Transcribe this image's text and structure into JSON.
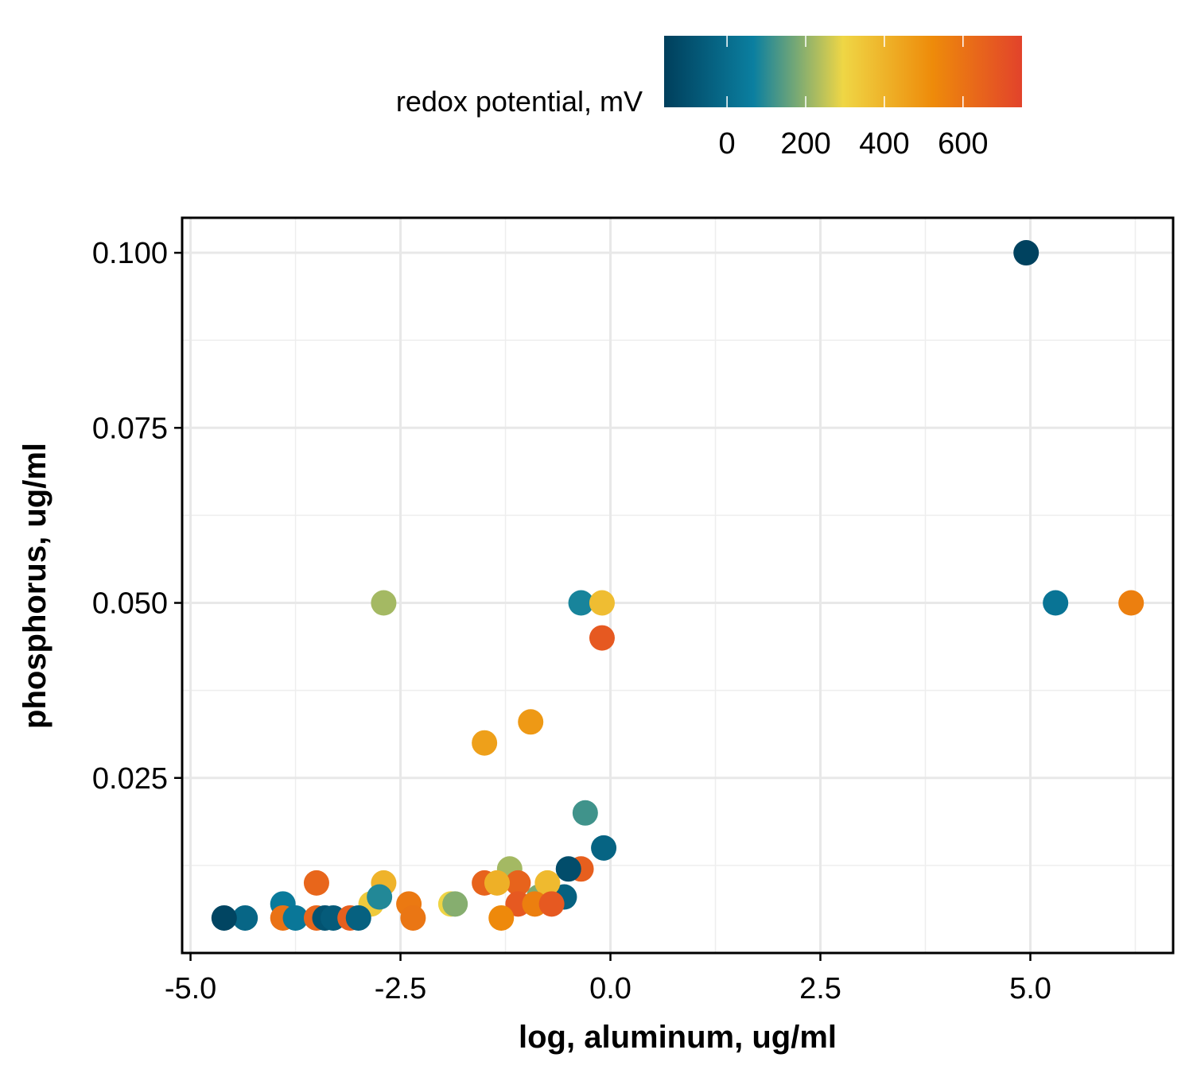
{
  "chart_data": {
    "type": "scatter",
    "title": "",
    "xlabel": "log, aluminum, ug/ml",
    "ylabel": "phosphorus, ug/ml",
    "xlim": [
      -5.1,
      6.7
    ],
    "ylim": [
      0.0,
      0.105
    ],
    "x_ticks": [
      -5.0,
      -2.5,
      0.0,
      2.5,
      5.0
    ],
    "x_tick_labels": [
      "-5.0",
      "-2.5",
      "0.0",
      "2.5",
      "5.0"
    ],
    "y_ticks": [
      0.025,
      0.05,
      0.075,
      0.1
    ],
    "y_tick_labels": [
      "0.025",
      "0.050",
      "0.075",
      "0.100"
    ],
    "grid": true,
    "color_legend": {
      "title": "redox potential, mV",
      "position": "top",
      "range": [
        -160,
        750
      ],
      "ticks": [
        0,
        200,
        400,
        600
      ],
      "tick_labels": [
        "0",
        "200",
        "400",
        "600"
      ],
      "colormap": [
        "#003f5c",
        "#0b7fa0",
        "#efd645",
        "#ee8b0a",
        "#e2432b"
      ]
    },
    "points": [
      {
        "x": 4.95,
        "y": 0.1,
        "c": -150
      },
      {
        "x": 5.3,
        "y": 0.05,
        "c": 30
      },
      {
        "x": 6.2,
        "y": 0.05,
        "c": 560
      },
      {
        "x": -2.7,
        "y": 0.05,
        "c": 220
      },
      {
        "x": -0.35,
        "y": 0.05,
        "c": 80
      },
      {
        "x": -0.1,
        "y": 0.05,
        "c": 370
      },
      {
        "x": -0.1,
        "y": 0.045,
        "c": 680
      },
      {
        "x": -0.95,
        "y": 0.033,
        "c": 480
      },
      {
        "x": -1.5,
        "y": 0.03,
        "c": 460
      },
      {
        "x": -0.3,
        "y": 0.02,
        "c": 120
      },
      {
        "x": -0.08,
        "y": 0.015,
        "c": -30
      },
      {
        "x": -0.35,
        "y": 0.012,
        "c": 660
      },
      {
        "x": -0.5,
        "y": 0.012,
        "c": -110
      },
      {
        "x": -1.2,
        "y": 0.012,
        "c": 220
      },
      {
        "x": -0.55,
        "y": 0.008,
        "c": -40
      },
      {
        "x": -0.85,
        "y": 0.008,
        "c": 180
      },
      {
        "x": -0.75,
        "y": 0.01,
        "c": 380
      },
      {
        "x": -1.1,
        "y": 0.01,
        "c": 650
      },
      {
        "x": -1.5,
        "y": 0.01,
        "c": 650
      },
      {
        "x": -1.35,
        "y": 0.01,
        "c": 410
      },
      {
        "x": -1.1,
        "y": 0.007,
        "c": 680
      },
      {
        "x": -0.9,
        "y": 0.007,
        "c": 560
      },
      {
        "x": -0.7,
        "y": 0.007,
        "c": 680
      },
      {
        "x": -1.3,
        "y": 0.005,
        "c": 530
      },
      {
        "x": -1.9,
        "y": 0.007,
        "c": 300
      },
      {
        "x": -1.85,
        "y": 0.007,
        "c": 190
      },
      {
        "x": -2.4,
        "y": 0.007,
        "c": 580
      },
      {
        "x": -2.7,
        "y": 0.01,
        "c": 400
      },
      {
        "x": -2.85,
        "y": 0.007,
        "c": 330
      },
      {
        "x": -2.75,
        "y": 0.008,
        "c": 90
      },
      {
        "x": -2.35,
        "y": 0.005,
        "c": 590
      },
      {
        "x": -3.5,
        "y": 0.01,
        "c": 640
      },
      {
        "x": -3.9,
        "y": 0.007,
        "c": 50
      },
      {
        "x": -3.9,
        "y": 0.005,
        "c": 600
      },
      {
        "x": -3.75,
        "y": 0.005,
        "c": 40
      },
      {
        "x": -3.5,
        "y": 0.005,
        "c": 640
      },
      {
        "x": -3.4,
        "y": 0.005,
        "c": -90
      },
      {
        "x": -3.3,
        "y": 0.005,
        "c": -60
      },
      {
        "x": -3.1,
        "y": 0.005,
        "c": 660
      },
      {
        "x": -3.0,
        "y": 0.005,
        "c": -40
      },
      {
        "x": -4.35,
        "y": 0.005,
        "c": -20
      },
      {
        "x": -4.6,
        "y": 0.005,
        "c": -140
      }
    ]
  }
}
